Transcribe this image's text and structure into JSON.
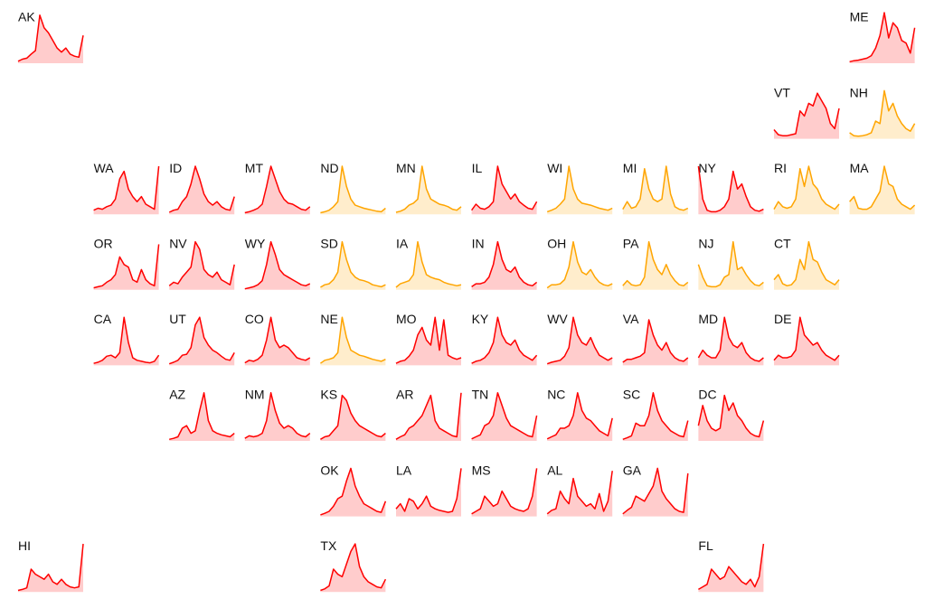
{
  "chart_data": {
    "type": "tilemap",
    "ylim": [
      0,
      100
    ],
    "tiles": [
      {
        "label": "AK",
        "color": "#ff0000",
        "values": [
          4,
          8,
          10,
          18,
          25,
          95,
          70,
          60,
          45,
          30,
          22,
          30,
          18,
          14,
          12,
          55
        ]
      },
      {
        "label": "ME",
        "color": "#ff0000",
        "values": [
          3,
          5,
          6,
          8,
          10,
          15,
          30,
          55,
          100,
          50,
          80,
          70,
          45,
          40,
          20,
          70
        ]
      },
      {
        "label": "VT",
        "color": "#ff0000",
        "values": [
          18,
          8,
          6,
          6,
          8,
          10,
          55,
          45,
          70,
          65,
          90,
          75,
          60,
          30,
          20,
          60
        ]
      },
      {
        "label": "NH",
        "color": "#ffa500",
        "values": [
          12,
          6,
          5,
          6,
          8,
          12,
          35,
          30,
          95,
          55,
          70,
          45,
          30,
          20,
          15,
          30
        ]
      },
      {
        "label": "WA",
        "color": "#ff0000",
        "values": [
          8,
          12,
          10,
          15,
          18,
          30,
          70,
          85,
          50,
          35,
          25,
          35,
          20,
          15,
          10,
          95
        ]
      },
      {
        "label": "ID",
        "color": "#ff0000",
        "values": [
          4,
          8,
          10,
          25,
          35,
          60,
          95,
          70,
          40,
          25,
          18,
          25,
          15,
          10,
          8,
          35
        ]
      },
      {
        "label": "MT",
        "color": "#ff0000",
        "values": [
          3,
          5,
          8,
          12,
          20,
          55,
          95,
          70,
          45,
          30,
          22,
          20,
          15,
          10,
          8,
          15
        ]
      },
      {
        "label": "ND",
        "color": "#ffa500",
        "values": [
          3,
          5,
          8,
          15,
          25,
          95,
          55,
          30,
          18,
          15,
          12,
          10,
          8,
          6,
          5,
          12
        ]
      },
      {
        "label": "MN",
        "color": "#ffa500",
        "values": [
          4,
          6,
          10,
          18,
          22,
          30,
          95,
          50,
          30,
          25,
          20,
          18,
          15,
          10,
          8,
          15
        ]
      },
      {
        "label": "IL",
        "color": "#ff0000",
        "values": [
          8,
          20,
          12,
          10,
          15,
          25,
          95,
          60,
          45,
          30,
          40,
          25,
          18,
          12,
          10,
          25
        ]
      },
      {
        "label": "WI",
        "color": "#ffa500",
        "values": [
          5,
          8,
          12,
          20,
          30,
          95,
          50,
          30,
          22,
          20,
          18,
          15,
          12,
          10,
          8,
          12
        ]
      },
      {
        "label": "MI",
        "color": "#ffa500",
        "values": [
          10,
          25,
          12,
          15,
          30,
          90,
          50,
          30,
          25,
          30,
          95,
          40,
          15,
          10,
          8,
          12
        ]
      },
      {
        "label": "NY",
        "color": "#ff0000",
        "values": [
          95,
          30,
          8,
          5,
          5,
          8,
          15,
          30,
          85,
          50,
          60,
          35,
          15,
          8,
          6,
          10
        ]
      },
      {
        "label": "RI",
        "color": "#ffa500",
        "values": [
          10,
          25,
          15,
          12,
          15,
          30,
          90,
          55,
          95,
          60,
          50,
          30,
          20,
          15,
          10,
          20
        ]
      },
      {
        "label": "MA",
        "color": "#ffa500",
        "values": [
          25,
          35,
          12,
          10,
          10,
          15,
          30,
          45,
          95,
          60,
          55,
          30,
          20,
          15,
          10,
          18
        ]
      },
      {
        "label": "OR",
        "color": "#ff0000",
        "values": [
          4,
          6,
          8,
          15,
          20,
          30,
          65,
          50,
          45,
          20,
          15,
          40,
          20,
          12,
          8,
          90
        ]
      },
      {
        "label": "NV",
        "color": "#ff0000",
        "values": [
          8,
          15,
          12,
          25,
          35,
          45,
          95,
          80,
          40,
          30,
          25,
          35,
          20,
          15,
          10,
          50
        ]
      },
      {
        "label": "WY",
        "color": "#ff0000",
        "values": [
          2,
          4,
          6,
          10,
          18,
          50,
          95,
          70,
          40,
          30,
          25,
          20,
          15,
          10,
          8,
          12
        ]
      },
      {
        "label": "SD",
        "color": "#ffa500",
        "values": [
          5,
          10,
          12,
          20,
          35,
          95,
          60,
          35,
          25,
          20,
          18,
          15,
          10,
          8,
          6,
          10
        ]
      },
      {
        "label": "IA",
        "color": "#ffa500",
        "values": [
          5,
          12,
          15,
          18,
          30,
          95,
          55,
          30,
          25,
          22,
          20,
          15,
          12,
          10,
          8,
          10
        ]
      },
      {
        "label": "IN",
        "color": "#ff0000",
        "values": [
          6,
          12,
          12,
          15,
          25,
          50,
          95,
          60,
          40,
          35,
          45,
          25,
          15,
          10,
          8,
          15
        ]
      },
      {
        "label": "OH",
        "color": "#ffa500",
        "values": [
          4,
          10,
          10,
          12,
          20,
          45,
          95,
          55,
          35,
          30,
          40,
          25,
          15,
          10,
          8,
          12
        ]
      },
      {
        "label": "PA",
        "color": "#ffa500",
        "values": [
          8,
          18,
          10,
          8,
          10,
          25,
          95,
          60,
          40,
          30,
          50,
          30,
          18,
          10,
          8,
          15
        ]
      },
      {
        "label": "NJ",
        "color": "#ffa500",
        "values": [
          50,
          25,
          8,
          6,
          6,
          10,
          25,
          30,
          95,
          40,
          45,
          30,
          18,
          10,
          8,
          15
        ]
      },
      {
        "label": "CT",
        "color": "#ffa500",
        "values": [
          20,
          30,
          12,
          8,
          10,
          20,
          60,
          40,
          95,
          60,
          55,
          35,
          20,
          15,
          10,
          20
        ]
      },
      {
        "label": "CA",
        "color": "#ff0000",
        "values": [
          4,
          6,
          10,
          18,
          20,
          15,
          25,
          95,
          45,
          15,
          10,
          8,
          6,
          5,
          8,
          20
        ]
      },
      {
        "label": "UT",
        "color": "#ff0000",
        "values": [
          3,
          6,
          10,
          20,
          22,
          35,
          80,
          95,
          55,
          40,
          30,
          25,
          18,
          12,
          10,
          25
        ]
      },
      {
        "label": "CO",
        "color": "#ff0000",
        "values": [
          5,
          10,
          8,
          12,
          20,
          50,
          95,
          50,
          35,
          40,
          35,
          25,
          15,
          12,
          10,
          15
        ]
      },
      {
        "label": "NE",
        "color": "#ffa500",
        "values": [
          4,
          10,
          12,
          15,
          25,
          95,
          55,
          30,
          25,
          20,
          18,
          15,
          12,
          10,
          8,
          12
        ]
      },
      {
        "label": "MO",
        "color": "#ff0000",
        "values": [
          4,
          8,
          10,
          18,
          30,
          60,
          75,
          50,
          40,
          95,
          30,
          90,
          20,
          15,
          12,
          15
        ]
      },
      {
        "label": "KY",
        "color": "#ff0000",
        "values": [
          4,
          8,
          10,
          15,
          25,
          45,
          95,
          60,
          45,
          40,
          50,
          30,
          20,
          15,
          10,
          20
        ]
      },
      {
        "label": "WV",
        "color": "#ff0000",
        "values": [
          3,
          6,
          8,
          10,
          18,
          35,
          95,
          60,
          45,
          40,
          55,
          35,
          20,
          15,
          10,
          15
        ]
      },
      {
        "label": "VA",
        "color": "#ff0000",
        "values": [
          6,
          12,
          12,
          15,
          18,
          25,
          90,
          60,
          40,
          30,
          45,
          25,
          15,
          10,
          8,
          15
        ]
      },
      {
        "label": "MD",
        "color": "#ff0000",
        "values": [
          15,
          30,
          20,
          15,
          15,
          30,
          95,
          55,
          40,
          35,
          45,
          25,
          15,
          10,
          8,
          15
        ]
      },
      {
        "label": "DE",
        "color": "#ff0000",
        "values": [
          10,
          20,
          15,
          15,
          18,
          30,
          95,
          60,
          50,
          40,
          45,
          30,
          20,
          15,
          10,
          20
        ]
      },
      {
        "label": "AZ",
        "color": "#ff0000",
        "values": [
          3,
          5,
          8,
          25,
          30,
          15,
          20,
          60,
          95,
          40,
          20,
          15,
          12,
          10,
          8,
          15
        ]
      },
      {
        "label": "NM",
        "color": "#ff0000",
        "values": [
          5,
          10,
          8,
          10,
          15,
          40,
          95,
          60,
          35,
          25,
          30,
          25,
          15,
          10,
          8,
          15
        ]
      },
      {
        "label": "KS",
        "color": "#ff0000",
        "values": [
          3,
          8,
          10,
          20,
          30,
          90,
          80,
          55,
          40,
          30,
          25,
          20,
          15,
          10,
          8,
          15
        ]
      },
      {
        "label": "AR",
        "color": "#ff0000",
        "values": [
          3,
          8,
          12,
          25,
          30,
          40,
          50,
          70,
          90,
          40,
          25,
          20,
          15,
          10,
          8,
          95
        ]
      },
      {
        "label": "TN",
        "color": "#ff0000",
        "values": [
          4,
          8,
          12,
          30,
          35,
          50,
          95,
          70,
          45,
          30,
          25,
          20,
          15,
          10,
          8,
          50
        ]
      },
      {
        "label": "NC",
        "color": "#ff0000",
        "values": [
          4,
          8,
          12,
          25,
          25,
          30,
          50,
          95,
          60,
          45,
          40,
          30,
          20,
          15,
          10,
          45
        ]
      },
      {
        "label": "SC",
        "color": "#ff0000",
        "values": [
          3,
          6,
          10,
          35,
          30,
          30,
          50,
          95,
          60,
          40,
          30,
          20,
          15,
          10,
          8,
          40
        ]
      },
      {
        "label": "DC",
        "color": "#ff0000",
        "values": [
          30,
          70,
          40,
          25,
          20,
          25,
          90,
          60,
          75,
          50,
          40,
          25,
          15,
          10,
          8,
          40
        ]
      },
      {
        "label": "OK",
        "color": "#ff0000",
        "values": [
          3,
          6,
          10,
          20,
          35,
          40,
          70,
          95,
          60,
          40,
          25,
          20,
          15,
          10,
          8,
          30
        ]
      },
      {
        "label": "LA",
        "color": "#ff0000",
        "values": [
          15,
          25,
          10,
          35,
          30,
          15,
          25,
          40,
          20,
          15,
          12,
          10,
          8,
          10,
          35,
          95
        ]
      },
      {
        "label": "MS",
        "color": "#ff0000",
        "values": [
          5,
          10,
          15,
          40,
          30,
          20,
          25,
          50,
          35,
          20,
          15,
          12,
          10,
          15,
          40,
          95
        ]
      },
      {
        "label": "AL",
        "color": "#ff0000",
        "values": [
          5,
          12,
          15,
          50,
          35,
          25,
          75,
          40,
          30,
          20,
          25,
          15,
          45,
          10,
          30,
          90
        ]
      },
      {
        "label": "GA",
        "color": "#ff0000",
        "values": [
          5,
          12,
          18,
          40,
          35,
          30,
          45,
          60,
          95,
          50,
          35,
          25,
          15,
          10,
          8,
          85
        ]
      },
      {
        "label": "HI",
        "color": "#ff0000",
        "values": [
          3,
          5,
          8,
          45,
          35,
          30,
          25,
          35,
          20,
          15,
          25,
          15,
          10,
          8,
          10,
          95
        ]
      },
      {
        "label": "TX",
        "color": "#ff0000",
        "values": [
          3,
          6,
          12,
          45,
          35,
          30,
          55,
          80,
          95,
          50,
          30,
          20,
          15,
          10,
          8,
          25
        ]
      },
      {
        "label": "FL",
        "color": "#ff0000",
        "values": [
          5,
          10,
          15,
          45,
          35,
          25,
          30,
          50,
          40,
          30,
          20,
          15,
          25,
          10,
          30,
          95
        ]
      }
    ]
  }
}
